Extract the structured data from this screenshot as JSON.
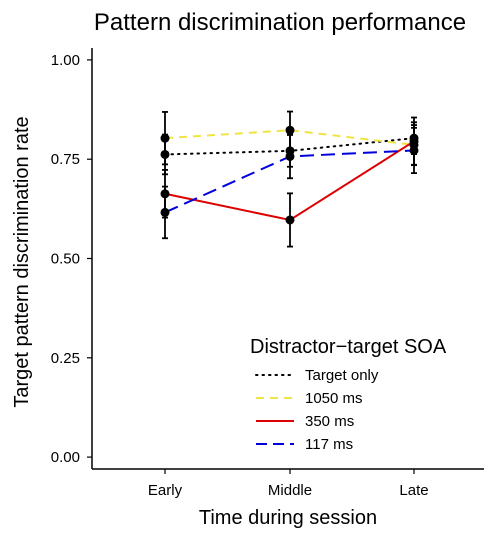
{
  "chart_data": {
    "type": "line",
    "title": "Pattern discrimination performance",
    "xlabel": "Time during session",
    "ylabel": "Target pattern discrimination rate",
    "categories": [
      "Early",
      "Middle",
      "Late"
    ],
    "ylim": [
      -0.03,
      1.03
    ],
    "yticks": [
      0.0,
      0.25,
      0.5,
      0.75,
      1.0
    ],
    "ytick_labels": [
      "0.00",
      "0.25",
      "0.50",
      "0.75",
      "1.00"
    ],
    "grid": false,
    "legend": {
      "title": "Distractor−target SOA",
      "placement": "bottom-right"
    },
    "series": [
      {
        "name": "Target only",
        "color": "#000000",
        "dash": "dotted",
        "values": [
          0.762,
          0.771,
          0.803
        ],
        "err_low": [
          0.712,
          0.731,
          0.763
        ],
        "err_high": [
          0.812,
          0.811,
          0.843
        ]
      },
      {
        "name": "1050 ms",
        "color": "#f0e442",
        "dash": "dashed",
        "values": [
          0.803,
          0.823,
          0.786
        ],
        "err_low": [
          0.737,
          0.776,
          0.736
        ],
        "err_high": [
          0.869,
          0.87,
          0.836
        ]
      },
      {
        "name": "350 ms",
        "color": "#dd0000",
        "dash": "solid",
        "values": [
          0.663,
          0.597,
          0.795
        ],
        "err_low": [
          0.603,
          0.53,
          0.735
        ],
        "err_high": [
          0.723,
          0.664,
          0.855
        ]
      },
      {
        "name": "117 ms",
        "color": "#0000dd",
        "dash": "longdash",
        "values": [
          0.616,
          0.757,
          0.772
        ],
        "err_low": [
          0.551,
          0.702,
          0.715
        ],
        "err_high": [
          0.681,
          0.812,
          0.829
        ]
      }
    ]
  }
}
